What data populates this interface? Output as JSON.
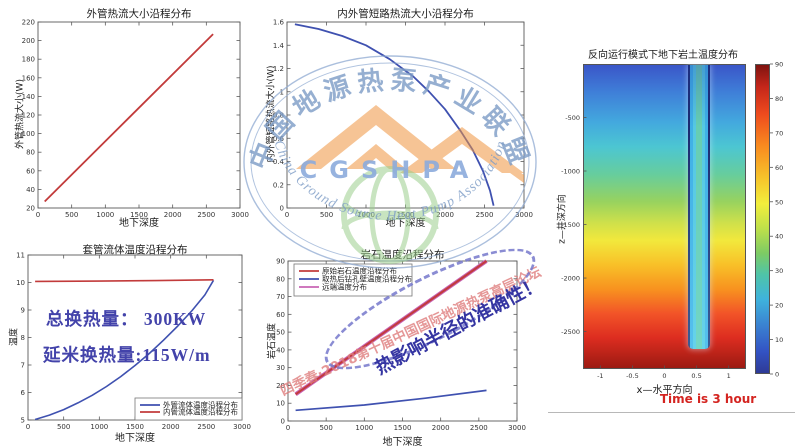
{
  "watermark": {
    "arc_top": "中国地源热泵产业联盟",
    "acronym": "CGSHPA",
    "arc_bottom": "China Ground Source Heat Pump Association",
    "diagonal_text": "四季春·2018第十届中国国际地源热泵高层论坛",
    "colors": {
      "ring": "#8fa9d2",
      "arc_text": "#7d9cc6",
      "roof": "#ef9440",
      "globe": "#9ccf8e",
      "acronym": "#8cabdc",
      "diagonal": "#dc8080"
    }
  },
  "annotations": {
    "total_heat": "总换热量： 300KW",
    "per_meter_heat": "延米换热量:115W/m",
    "accuracy_note": "热影响半径的准确性！",
    "time_label": "Time is 3 hour"
  },
  "chart_data": [
    {
      "type": "line",
      "title": "外管热流大小沿程分布",
      "xlabel": "地下深度",
      "ylabel": "外管热流大小(W)",
      "xlim": [
        0,
        3000
      ],
      "ylim": [
        20,
        220
      ],
      "xticks": [
        "0",
        "500",
        "1000",
        "1500",
        "2000",
        "2500",
        "3000"
      ],
      "xtick_values": [
        0,
        500,
        1000,
        1500,
        2000,
        2500,
        3000
      ],
      "yticks": [
        "20",
        "40",
        "60",
        "80",
        "100",
        "120",
        "140",
        "160",
        "180",
        "200",
        "220"
      ],
      "ytick_values": [
        20,
        40,
        60,
        80,
        100,
        120,
        140,
        160,
        180,
        200,
        220
      ],
      "grid": false,
      "series": [
        {
          "name": "外管热流大小",
          "color": "#c23b3b",
          "width": 1.8,
          "points": [
            [
              100,
              27
            ],
            [
              2600,
              207
            ]
          ]
        }
      ]
    },
    {
      "type": "line",
      "title": "内外管短路热流大小沿程分布",
      "xlabel": "地下深度",
      "ylabel": "内外管短路热流大小(W)",
      "xlim": [
        0,
        3000
      ],
      "ylim": [
        0,
        1.6
      ],
      "xticks": [
        "0",
        "500",
        "1000",
        "1500",
        "2000",
        "2500",
        "3000"
      ],
      "xtick_values": [
        0,
        500,
        1000,
        1500,
        2000,
        2500,
        3000
      ],
      "yticks": [
        "0",
        "0.2",
        "0.4",
        "0.6",
        "0.8",
        "1",
        "1.2",
        "1.4",
        "1.6"
      ],
      "ytick_values": [
        0,
        0.2,
        0.4,
        0.6,
        0.8,
        1.0,
        1.2,
        1.4,
        1.6
      ],
      "grid": false,
      "series": [
        {
          "name": "内外管短路热流大小",
          "color": "#3f51b0",
          "width": 1.8,
          "points": [
            [
              100,
              1.58
            ],
            [
              400,
              1.54
            ],
            [
              700,
              1.48
            ],
            [
              1000,
              1.4
            ],
            [
              1300,
              1.28
            ],
            [
              1600,
              1.13
            ],
            [
              1800,
              1.0
            ],
            [
              2000,
              0.85
            ],
            [
              2200,
              0.66
            ],
            [
              2350,
              0.5
            ],
            [
              2480,
              0.32
            ],
            [
              2570,
              0.15
            ],
            [
              2615,
              0.02
            ]
          ]
        }
      ]
    },
    {
      "type": "line",
      "title": "套管流体温度沿程分布",
      "xlabel": "地下深度",
      "ylabel": "温度",
      "xlim": [
        0,
        3000
      ],
      "ylim": [
        5,
        11
      ],
      "xticks": [
        "0",
        "500",
        "1000",
        "1500",
        "2000",
        "2500",
        "3000"
      ],
      "xtick_values": [
        0,
        500,
        1000,
        1500,
        2000,
        2500,
        3000
      ],
      "yticks": [
        "5",
        "6",
        "7",
        "8",
        "9",
        "10",
        "11"
      ],
      "ytick_values": [
        5,
        6,
        7,
        8,
        9,
        10,
        11
      ],
      "grid": false,
      "legend": {
        "position": "bottom-right",
        "items": [
          {
            "label": "外管流体温度沿程分布",
            "color": "#3f51b0"
          },
          {
            "label": "内管流体温度沿程分布",
            "color": "#c23b3b"
          }
        ]
      },
      "series": [
        {
          "name": "外管流体温度沿程分布",
          "color": "#3f51b0",
          "width": 1.6,
          "points": [
            [
              100,
              5.02
            ],
            [
              300,
              5.18
            ],
            [
              500,
              5.38
            ],
            [
              700,
              5.62
            ],
            [
              900,
              5.9
            ],
            [
              1100,
              6.22
            ],
            [
              1300,
              6.58
            ],
            [
              1500,
              6.98
            ],
            [
              1700,
              7.42
            ],
            [
              1900,
              7.9
            ],
            [
              2100,
              8.42
            ],
            [
              2300,
              8.98
            ],
            [
              2480,
              9.55
            ],
            [
              2600,
              10.08
            ]
          ]
        },
        {
          "name": "内管流体温度沿程分布",
          "color": "#c23b3b",
          "width": 1.6,
          "points": [
            [
              100,
              10.04
            ],
            [
              1000,
              10.05
            ],
            [
              1800,
              10.07
            ],
            [
              2600,
              10.1
            ]
          ]
        }
      ]
    },
    {
      "type": "line",
      "title": "岩石温度沿程分布",
      "xlabel": "地下深度",
      "ylabel": "岩石温度",
      "xlim": [
        0,
        3000
      ],
      "ylim": [
        0,
        90
      ],
      "xticks": [
        "0",
        "500",
        "1000",
        "1500",
        "2000",
        "2500",
        "3000"
      ],
      "xtick_values": [
        0,
        500,
        1000,
        1500,
        2000,
        2500,
        3000
      ],
      "yticks": [
        "0",
        "10",
        "20",
        "30",
        "40",
        "50",
        "60",
        "70",
        "80",
        "90"
      ],
      "ytick_values": [
        0,
        10,
        20,
        30,
        40,
        50,
        60,
        70,
        80,
        90
      ],
      "grid": false,
      "legend": {
        "position": "top-left",
        "items": [
          {
            "label": "原始岩石温度沿程分布",
            "color": "#c23b3b"
          },
          {
            "label": "取热后钻孔壁温度沿程分布",
            "color": "#3f51b0"
          },
          {
            "label": "远端温度分布",
            "color": "#c864b4"
          }
        ]
      },
      "series": [
        {
          "name": "远端温度分布",
          "color": "#c864b4",
          "width": 4,
          "points": [
            [
              100,
              15
            ],
            [
              2600,
              90
            ]
          ]
        },
        {
          "name": "原始岩石温度沿程分布",
          "color": "#c23b3b",
          "width": 2,
          "points": [
            [
              100,
              15
            ],
            [
              2600,
              90
            ]
          ]
        },
        {
          "name": "取热后钻孔壁温度沿程分布",
          "color": "#3f51b0",
          "width": 1.7,
          "points": [
            [
              100,
              6
            ],
            [
              1000,
              9
            ],
            [
              1800,
              12.8
            ],
            [
              2600,
              17.2
            ]
          ]
        }
      ]
    },
    {
      "type": "heatmap",
      "title": "反向运行模式下地下岩土温度分布",
      "xlabel": "x—水平方向",
      "ylabel": "z—井深方向",
      "xlim": [
        -1.27,
        1.27
      ],
      "ylim": [
        0,
        -2850
      ],
      "xticks": [
        "-1",
        "-0.5",
        "0",
        "0.5",
        "1"
      ],
      "xtick_values": [
        -1,
        -0.5,
        0,
        0.5,
        1
      ],
      "yticks": [
        "-500",
        "-1000",
        "-1500",
        "-2000",
        "-2500"
      ],
      "ytick_values": [
        -500,
        -1000,
        -1500,
        -2000,
        -2500
      ],
      "colormap": "jet",
      "colorbar": {
        "min": 0,
        "max": 90,
        "ticks": [
          "0",
          "10",
          "20",
          "30",
          "40",
          "50",
          "60",
          "70",
          "80",
          "90"
        ],
        "tick_values": [
          0,
          10,
          20,
          30,
          40,
          50,
          60,
          70,
          80,
          90
        ]
      },
      "features": {
        "borehole_x": 0,
        "borehole_bottom_z": -2650,
        "temp_top": 15,
        "temp_bottom": 90
      }
    }
  ]
}
